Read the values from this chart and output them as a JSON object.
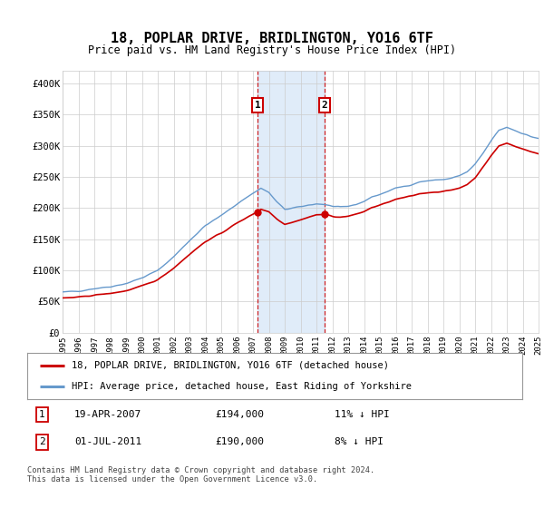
{
  "title": "18, POPLAR DRIVE, BRIDLINGTON, YO16 6TF",
  "subtitle": "Price paid vs. HM Land Registry's House Price Index (HPI)",
  "ylim": [
    0,
    420000
  ],
  "yticks": [
    0,
    50000,
    100000,
    150000,
    200000,
    250000,
    300000,
    350000,
    400000
  ],
  "x_start_year": 1995,
  "x_end_year": 2025,
  "transaction1_date": 2007.29,
  "transaction1_price": 194000,
  "transaction2_date": 2011.5,
  "transaction2_price": 190000,
  "legend_property": "18, POPLAR DRIVE, BRIDLINGTON, YO16 6TF (detached house)",
  "legend_hpi": "HPI: Average price, detached house, East Riding of Yorkshire",
  "table_row1_date": "19-APR-2007",
  "table_row1_price": "£194,000",
  "table_row1_hpi": "11% ↓ HPI",
  "table_row2_date": "01-JUL-2011",
  "table_row2_price": "£190,000",
  "table_row2_hpi": "8% ↓ HPI",
  "footer": "Contains HM Land Registry data © Crown copyright and database right 2024.\nThis data is licensed under the Open Government Licence v3.0.",
  "property_line_color": "#cc0000",
  "hpi_line_color": "#6699cc",
  "shade_color": "#cce0f5",
  "grid_color": "#cccccc",
  "marker_box_color": "#cc0000",
  "background_color": "#ffffff"
}
